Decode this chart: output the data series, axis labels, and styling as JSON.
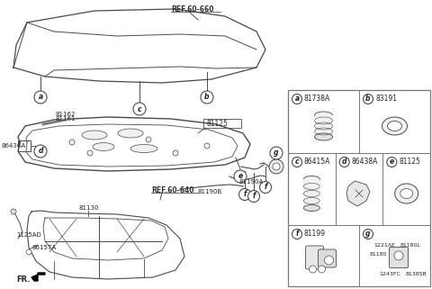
{
  "bg_color": "#ffffff",
  "line_color": "#4a4a4a",
  "text_color": "#222222",
  "grid_color": "#777777",
  "ref_60_660": "REF.60-660",
  "ref_60_640": "REF.60-640",
  "fr_label": "FR."
}
